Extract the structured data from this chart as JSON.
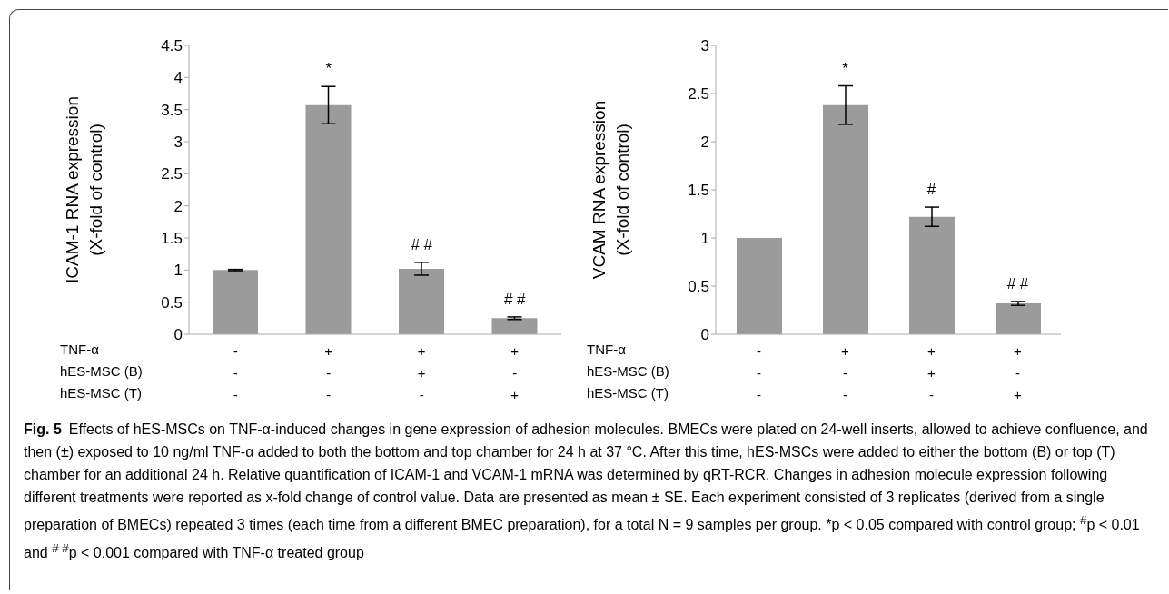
{
  "chart_data": [
    {
      "type": "bar",
      "ylabel": "ICAM-1 RNA expression\n(X-fold of control)",
      "xlabel": "TNF-α\nhES-MSC (B)\nhES-MSC (T)",
      "categories": [
        "-\n-\n-",
        "+\n-\n-",
        "+\n+\n-",
        "+\n-\n+"
      ],
      "values": [
        1.0,
        3.57,
        1.02,
        0.25
      ],
      "errors": [
        0.01,
        0.29,
        0.1,
        0.02
      ],
      "color": "#9b9b9b",
      "ylim": [
        0,
        4.5
      ],
      "yticks": [
        0,
        0.5,
        1,
        1.5,
        2,
        2.5,
        3,
        3.5,
        4,
        4.5
      ],
      "grid": false,
      "legend": false,
      "value_labels": [
        null,
        "*",
        "# #",
        "# #"
      ],
      "annotations": [
        "Fig. 5",
        "Effects of hES-MSCs on TNF-α-induced changes in gene expression of adhesion molecules. BMECs were plated on 24-well inserts, allowed to achieve confluence, and then (±) exposed to 10 ng/ml TNF-α added to both the bottom and top chamber for 24 h at 37 °C. After this time, hES-MSCs were added to either the bottom (B) or top (T) chamber for an additional 24 h. Relative quantification of ICAM-1 and VCAM-1 mRNA was determined by qRT-RCR. Changes in adhesion molecule expression following different treatments were reported as x-fold change of control value. Data are presented as mean ± SE. Each experiment consisted of 3 replicates (derived from a single preparation of BMECs) repeated 3 times (each time from a different BMEC preparation), for a total N = 9 samples per group. *p < 0.05 compared with control group; $^{#}$p < 0.01 and $^{# #}$p < 0.001 compared with TNF-α treated group"
      ]
    },
    {
      "type": "bar",
      "ylabel": "VCAM RNA expression\n(X-fold of control)",
      "xlabel": "TNF-α\nhES-MSC (B)\nhES-MSC (T)",
      "categories": [
        "-\n-\n-",
        "+\n-\n-",
        "+\n+\n-",
        "+\n-\n+"
      ],
      "values": [
        1.0,
        2.38,
        1.22,
        0.32
      ],
      "errors": [
        null,
        0.2,
        0.1,
        0.02
      ],
      "color": "#9b9b9b",
      "ylim": [
        0,
        3
      ],
      "yticks": [
        0,
        0.5,
        1,
        1.5,
        2,
        2.5,
        3
      ],
      "grid": false,
      "legend": false,
      "value_labels": [
        null,
        "*",
        "#",
        "# #"
      ]
    }
  ]
}
